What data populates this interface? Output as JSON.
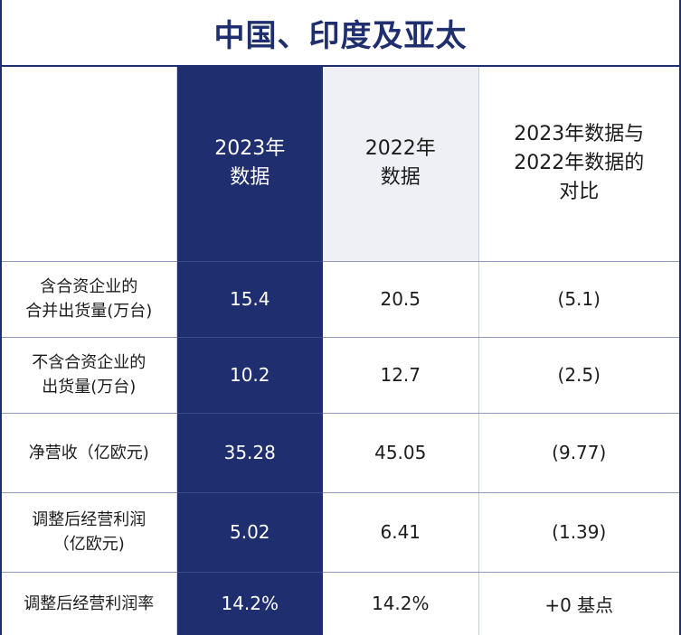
{
  "title": "中国、印度及亚太",
  "header": {
    "label_col": "",
    "col_2023": [
      "2023年",
      "数据"
    ],
    "col_2022": [
      "2022年",
      "数据"
    ],
    "col_compare": [
      "2023年数据与",
      "2022年数据的",
      "对比"
    ]
  },
  "rows": [
    {
      "label": [
        "含合资企业的",
        "合并出货量(万台)"
      ],
      "v2023": "15.4",
      "v2022": "20.5",
      "compare": "(5.1)"
    },
    {
      "label": [
        "不含合资企业的",
        "出货量(万台)"
      ],
      "v2023": "10.2",
      "v2022": "12.7",
      "compare": "(2.5)"
    },
    {
      "label": [
        "净营收（亿欧元)"
      ],
      "v2023": "35.28",
      "v2022": "45.05",
      "compare": "(9.77)"
    },
    {
      "label": [
        "调整后经营利润",
        "（亿欧元)"
      ],
      "v2023": "5.02",
      "v2022": "6.41",
      "compare": "(1.39)"
    },
    {
      "label": [
        "调整后经营利润率"
      ],
      "v2023": "14.2%",
      "v2022": "14.2%",
      "compare": "+0 基点"
    }
  ],
  "colors": {
    "accent_navy": "#1f2e6e",
    "header_2022_bg": "#eef0f6"
  }
}
